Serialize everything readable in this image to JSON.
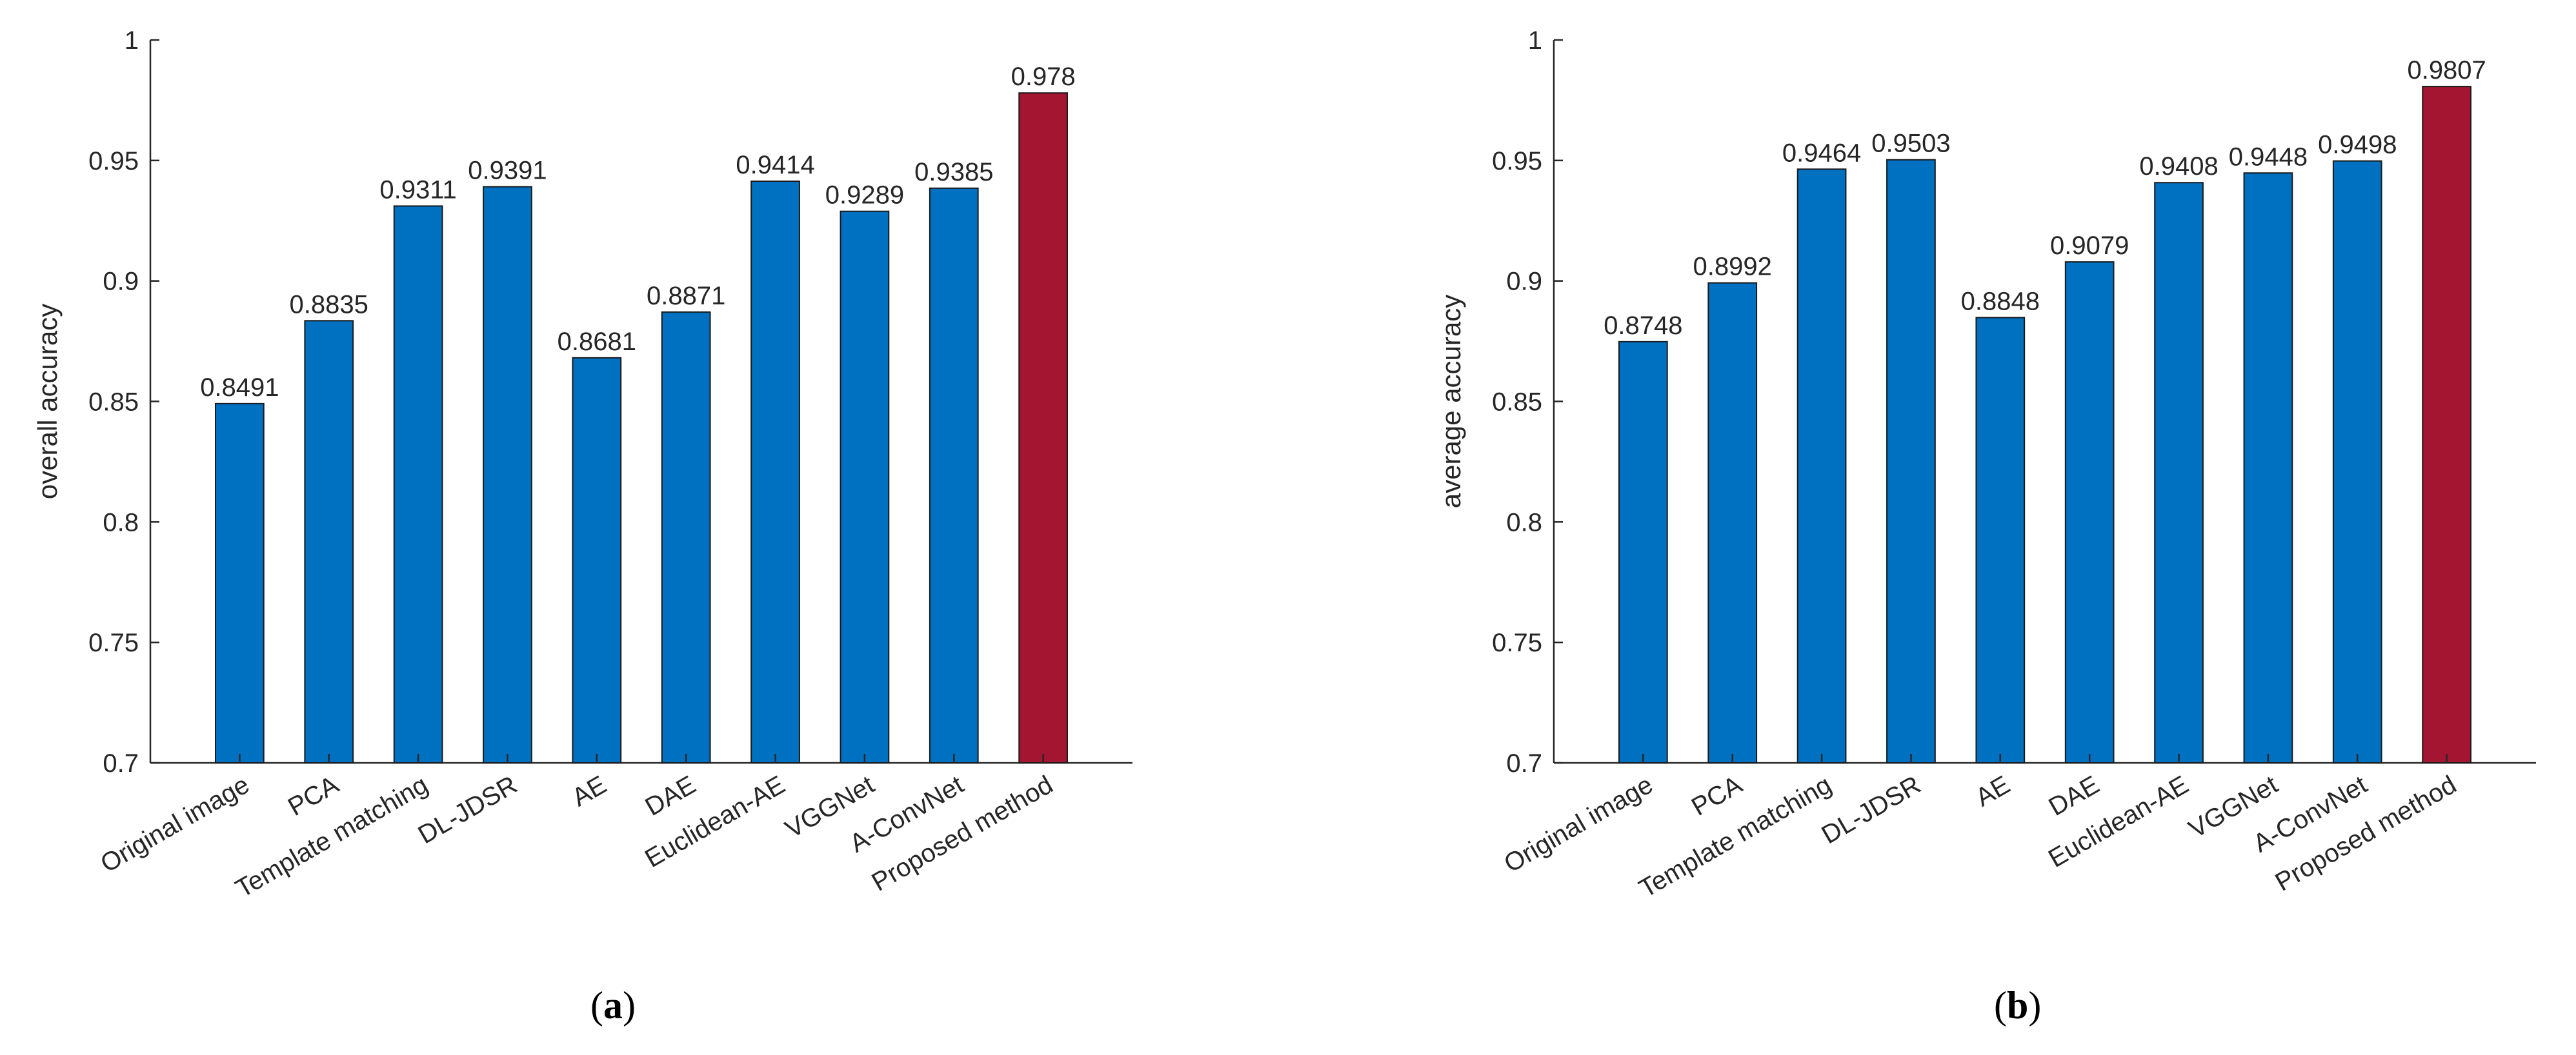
{
  "colors": {
    "bar": "#0070C0",
    "highlight": "#A31530",
    "axis": "#262626",
    "edge": "#1a1a1a"
  },
  "chart_data": [
    {
      "type": "bar",
      "panel": "a",
      "ylabel": "overall accuracy",
      "xlabel": "",
      "ylim": [
        0.7,
        1.0
      ],
      "yticks": [
        0.7,
        0.75,
        0.8,
        0.85,
        0.9,
        0.95,
        1
      ],
      "ytick_labels": [
        "0.7",
        "0.75",
        "0.8",
        "0.85",
        "0.9",
        "0.95",
        "1"
      ],
      "categories": [
        "Original image",
        "PCA",
        "Template matching",
        "DL-JDSR",
        "AE",
        "DAE",
        "Euclidean-AE",
        "VGGNet",
        "A-ConvNet",
        "Proposed method"
      ],
      "values": [
        0.8491,
        0.8835,
        0.9311,
        0.9391,
        0.8681,
        0.8871,
        0.9414,
        0.9289,
        0.9385,
        0.978
      ],
      "value_labels": [
        "0.8491",
        "0.8835",
        "0.9311",
        "0.9391",
        "0.8681",
        "0.8871",
        "0.9414",
        "0.9289",
        "0.9385",
        "0.978"
      ],
      "highlight_index": 9,
      "grid": false
    },
    {
      "type": "bar",
      "panel": "b",
      "ylabel": "average accuracy",
      "xlabel": "",
      "ylim": [
        0.7,
        1.0
      ],
      "yticks": [
        0.7,
        0.75,
        0.8,
        0.85,
        0.9,
        0.95,
        1
      ],
      "ytick_labels": [
        "0.7",
        "0.75",
        "0.8",
        "0.85",
        "0.9",
        "0.95",
        "1"
      ],
      "categories": [
        "Original image",
        "PCA",
        "Template matching",
        "DL-JDSR",
        "AE",
        "DAE",
        "Euclidean-AE",
        "VGGNet",
        "A-ConvNet",
        "Proposed method"
      ],
      "values": [
        0.8748,
        0.8992,
        0.9464,
        0.9503,
        0.8848,
        0.9079,
        0.9408,
        0.9448,
        0.9498,
        0.9807
      ],
      "value_labels": [
        "0.8748",
        "0.8992",
        "0.9464",
        "0.9503",
        "0.8848",
        "0.9079",
        "0.9408",
        "0.9448",
        "0.9498",
        "0.9807"
      ],
      "highlight_index": 9,
      "grid": false
    }
  ],
  "panels": {
    "a": {
      "open": "(",
      "letter": "a",
      "close": ")"
    },
    "b": {
      "open": "(",
      "letter": "b",
      "close": ")"
    }
  }
}
